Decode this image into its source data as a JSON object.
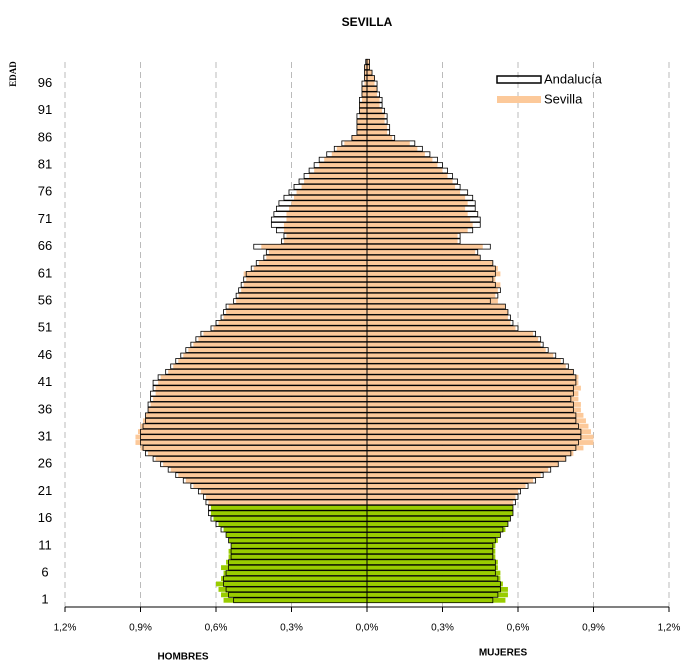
{
  "chart_data": {
    "type": "pyramid",
    "title": "SEVILLA",
    "y_label": "EDAD",
    "left_label": "HOMBRES",
    "right_label": "MUJERES",
    "categories": [
      "1",
      null,
      null,
      null,
      null,
      "6",
      null,
      null,
      null,
      null,
      "11",
      null,
      null,
      null,
      null,
      "16",
      null,
      null,
      null,
      null,
      "21",
      null,
      null,
      null,
      null,
      "26",
      null,
      null,
      null,
      null,
      "31",
      null,
      null,
      null,
      null,
      "36",
      null,
      null,
      null,
      null,
      "41",
      null,
      null,
      null,
      null,
      "46",
      null,
      null,
      null,
      null,
      "51",
      null,
      null,
      null,
      null,
      "56",
      null,
      null,
      null,
      null,
      "61",
      null,
      null,
      null,
      null,
      "66",
      null,
      null,
      null,
      null,
      "71",
      null,
      null,
      null,
      null,
      "76",
      null,
      null,
      null,
      null,
      "81",
      null,
      null,
      null,
      null,
      "86",
      null,
      null,
      null,
      null,
      "91",
      null,
      null,
      null,
      null,
      "96",
      null,
      null,
      null,
      null
    ],
    "xlim": [
      -1.2,
      1.2
    ],
    "xticks": [
      {
        "value": -1.2,
        "label": "1,2%"
      },
      {
        "value": -0.9,
        "label": "0,9%"
      },
      {
        "value": -0.6,
        "label": "0,6%"
      },
      {
        "value": -0.3,
        "label": "0,3%"
      },
      {
        "value": 0,
        "label": "0,0%"
      },
      {
        "value": 0.3,
        "label": "0,3%"
      },
      {
        "value": 0.6,
        "label": "0,6%"
      },
      {
        "value": 0.9,
        "label": "0,9%"
      },
      {
        "value": 1.2,
        "label": "1,2%"
      }
    ],
    "grid": true,
    "legend": "top-right",
    "series": [
      {
        "name": "Sevilla",
        "style": "fill",
        "color": "#fcc99a",
        "highlight": {
          "color": "#99cc00",
          "count": 18
        },
        "men": [
          -0.57,
          -0.58,
          -0.59,
          -0.6,
          -0.58,
          -0.57,
          -0.58,
          -0.56,
          -0.55,
          -0.55,
          -0.54,
          -0.55,
          -0.56,
          -0.57,
          -0.59,
          -0.61,
          -0.62,
          -0.62,
          -0.63,
          -0.64,
          -0.66,
          -0.69,
          -0.72,
          -0.75,
          -0.78,
          -0.81,
          -0.84,
          -0.87,
          -0.9,
          -0.92,
          -0.92,
          -0.91,
          -0.9,
          -0.89,
          -0.88,
          -0.87,
          -0.86,
          -0.85,
          -0.84,
          -0.84,
          -0.83,
          -0.82,
          -0.79,
          -0.77,
          -0.75,
          -0.73,
          -0.71,
          -0.69,
          -0.67,
          -0.65,
          -0.61,
          -0.59,
          -0.57,
          -0.56,
          -0.55,
          -0.52,
          -0.51,
          -0.5,
          -0.49,
          -0.48,
          -0.49,
          -0.45,
          -0.43,
          -0.4,
          -0.39,
          -0.42,
          -0.33,
          -0.32,
          -0.33,
          -0.33,
          -0.32,
          -0.32,
          -0.31,
          -0.3,
          -0.29,
          -0.28,
          -0.26,
          -0.25,
          -0.23,
          -0.21,
          -0.19,
          -0.17,
          -0.14,
          -0.12,
          -0.09,
          -0.06,
          -0.04,
          -0.04,
          -0.04,
          -0.03,
          -0.03,
          -0.03,
          -0.02,
          -0.02,
          -0.02,
          -0.01,
          -0.01,
          -0.01,
          -0.01,
          -0.005
        ],
        "women": [
          0.55,
          0.56,
          0.56,
          0.54,
          0.53,
          0.53,
          0.52,
          0.52,
          0.51,
          0.51,
          0.51,
          0.52,
          0.53,
          0.55,
          0.56,
          0.57,
          0.58,
          0.58,
          0.58,
          0.59,
          0.6,
          0.63,
          0.66,
          0.69,
          0.72,
          0.76,
          0.79,
          0.82,
          0.86,
          0.9,
          0.9,
          0.89,
          0.88,
          0.87,
          0.86,
          0.85,
          0.85,
          0.84,
          0.84,
          0.85,
          0.84,
          0.84,
          0.82,
          0.79,
          0.77,
          0.74,
          0.71,
          0.69,
          0.68,
          0.66,
          0.59,
          0.57,
          0.56,
          0.56,
          0.55,
          0.52,
          0.51,
          0.52,
          0.53,
          0.51,
          0.53,
          0.52,
          0.5,
          0.45,
          0.43,
          0.46,
          0.36,
          0.36,
          0.4,
          0.42,
          0.41,
          0.4,
          0.39,
          0.4,
          0.39,
          0.37,
          0.35,
          0.34,
          0.32,
          0.3,
          0.28,
          0.26,
          0.23,
          0.2,
          0.17,
          0.1,
          0.08,
          0.08,
          0.07,
          0.07,
          0.06,
          0.05,
          0.05,
          0.04,
          0.04,
          0.03,
          0.03,
          0.02,
          0.01,
          0.01
        ]
      },
      {
        "name": "Andalucía",
        "style": "outline",
        "color": "#000000",
        "men": [
          -0.53,
          -0.55,
          -0.56,
          -0.57,
          -0.57,
          -0.56,
          -0.55,
          -0.55,
          -0.54,
          -0.54,
          -0.54,
          -0.55,
          -0.56,
          -0.58,
          -0.6,
          -0.62,
          -0.63,
          -0.63,
          -0.64,
          -0.65,
          -0.67,
          -0.7,
          -0.73,
          -0.76,
          -0.79,
          -0.82,
          -0.85,
          -0.88,
          -0.89,
          -0.9,
          -0.9,
          -0.9,
          -0.89,
          -0.88,
          -0.88,
          -0.87,
          -0.87,
          -0.86,
          -0.86,
          -0.85,
          -0.85,
          -0.83,
          -0.8,
          -0.78,
          -0.76,
          -0.74,
          -0.72,
          -0.7,
          -0.68,
          -0.66,
          -0.62,
          -0.6,
          -0.58,
          -0.57,
          -0.56,
          -0.53,
          -0.52,
          -0.51,
          -0.5,
          -0.49,
          -0.48,
          -0.46,
          -0.44,
          -0.41,
          -0.4,
          -0.45,
          -0.34,
          -0.33,
          -0.36,
          -0.38,
          -0.38,
          -0.37,
          -0.36,
          -0.35,
          -0.33,
          -0.31,
          -0.29,
          -0.27,
          -0.25,
          -0.23,
          -0.21,
          -0.19,
          -0.16,
          -0.13,
          -0.1,
          -0.06,
          -0.04,
          -0.04,
          -0.04,
          -0.04,
          -0.03,
          -0.03,
          -0.03,
          -0.02,
          -0.02,
          -0.02,
          -0.01,
          -0.01,
          -0.01,
          -0.005
        ],
        "women": [
          0.5,
          0.52,
          0.53,
          0.53,
          0.52,
          0.51,
          0.51,
          0.51,
          0.5,
          0.5,
          0.5,
          0.51,
          0.53,
          0.54,
          0.56,
          0.57,
          0.58,
          0.58,
          0.59,
          0.6,
          0.61,
          0.64,
          0.67,
          0.7,
          0.73,
          0.76,
          0.79,
          0.81,
          0.83,
          0.84,
          0.85,
          0.85,
          0.84,
          0.83,
          0.83,
          0.82,
          0.82,
          0.81,
          0.82,
          0.82,
          0.83,
          0.83,
          0.82,
          0.8,
          0.78,
          0.75,
          0.72,
          0.7,
          0.69,
          0.67,
          0.6,
          0.58,
          0.57,
          0.56,
          0.55,
          0.49,
          0.52,
          0.53,
          0.51,
          0.5,
          0.51,
          0.51,
          0.5,
          0.45,
          0.44,
          0.49,
          0.37,
          0.37,
          0.42,
          0.45,
          0.45,
          0.44,
          0.43,
          0.43,
          0.42,
          0.4,
          0.37,
          0.36,
          0.34,
          0.32,
          0.3,
          0.28,
          0.25,
          0.22,
          0.19,
          0.11,
          0.09,
          0.09,
          0.08,
          0.08,
          0.07,
          0.06,
          0.06,
          0.05,
          0.04,
          0.04,
          0.03,
          0.02,
          0.01,
          0.01
        ]
      }
    ]
  }
}
